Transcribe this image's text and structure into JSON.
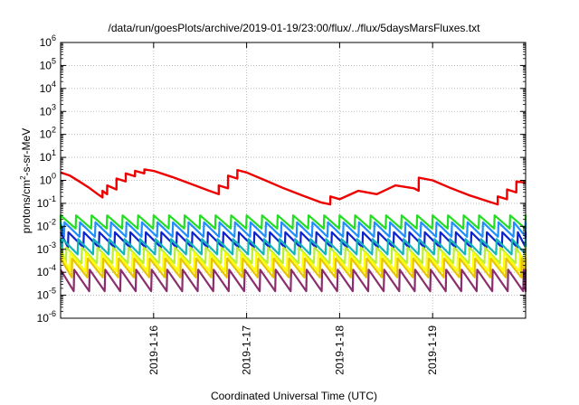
{
  "chart_data": {
    "type": "line",
    "title": "/data/run/goesPlots/archive/2019-01-19/23:00/flux/../flux/5daysMarsFluxes.txt",
    "xlabel": "Coordinated Universal Time (UTC)",
    "ylabel": "protons/cm²-s-sr-MeV",
    "ylabel_parts": {
      "pre": "protons/cm",
      "sup": "2",
      "post": "-s-sr-MeV"
    },
    "y_scale": "log",
    "ylim": [
      1e-06,
      1000000.0
    ],
    "x_range_days": [
      "2019-01-15 00:00",
      "2019-01-20 00:00"
    ],
    "xticks": [
      "2019-1-16",
      "2019-1-17",
      "2019-1-18",
      "2019-1-19"
    ],
    "ytick_exponents": [
      "6",
      "5",
      "4",
      "3",
      "2",
      "1",
      "0",
      "-1",
      "-2",
      "-3",
      "-4",
      "-5",
      "-6"
    ],
    "ytick_base": "10",
    "grid": true,
    "grid_style": "dotted",
    "colors": {
      "red": "#ee0000",
      "green": "#22dd22",
      "azure": "#1f8fff",
      "blue": "#0c22cc",
      "teal": "#12b6b6",
      "yellowgreen": "#b8ee33",
      "yellow": "#ffff00",
      "orange": "#e8c400",
      "purple": "#8a2f6e"
    },
    "series": [
      {
        "color": "red",
        "x": [
          "2019-01-15 00:00",
          "2019-01-15 02:24",
          "2019-01-15 04:48",
          "2019-01-15 07:12",
          "2019-01-15 09:36",
          "2019-01-15 10:48",
          "2019-01-15 10:49",
          "2019-01-15 12:00",
          "2019-01-15 12:01",
          "2019-01-15 14:24",
          "2019-01-15 14:25",
          "2019-01-15 16:48",
          "2019-01-15 16:49",
          "2019-01-15 19:12",
          "2019-01-15 19:13",
          "2019-01-15 21:36",
          "2019-01-15 21:37",
          "2019-01-16 00:00",
          "2019-01-16 04:48",
          "2019-01-16 09:36",
          "2019-01-16 14:24",
          "2019-01-16 16:48",
          "2019-01-16 16:49",
          "2019-01-16 19:12",
          "2019-01-16 19:13",
          "2019-01-16 21:36",
          "2019-01-16 21:37",
          "2019-01-17 00:00",
          "2019-01-17 04:48",
          "2019-01-17 09:36",
          "2019-01-17 14:24",
          "2019-01-17 19:12",
          "2019-01-17 21:36",
          "2019-01-17 21:37",
          "2019-01-18 00:00",
          "2019-01-18 04:48",
          "2019-01-18 09:36",
          "2019-01-18 14:24",
          "2019-01-18 19:12",
          "2019-01-18 20:24",
          "2019-01-18 20:25",
          "2019-01-19 00:00",
          "2019-01-19 04:48",
          "2019-01-19 09:36",
          "2019-01-19 14:24",
          "2019-01-19 16:48",
          "2019-01-19 16:49",
          "2019-01-19 19:12",
          "2019-01-19 19:13",
          "2019-01-19 21:36",
          "2019-01-19 21:37",
          "2019-01-20 00:00"
        ],
        "values": [
          2.2,
          1.6,
          0.9,
          0.5,
          0.25,
          0.18,
          0.35,
          0.25,
          0.6,
          0.4,
          1.2,
          0.9,
          2.0,
          1.5,
          2.6,
          2.0,
          3.0,
          2.6,
          1.4,
          0.7,
          0.35,
          0.25,
          0.6,
          0.45,
          1.6,
          1.2,
          2.8,
          2.2,
          1.0,
          0.45,
          0.22,
          0.11,
          0.09,
          0.2,
          0.15,
          0.35,
          0.25,
          0.6,
          0.45,
          0.35,
          1.3,
          1.0,
          0.45,
          0.22,
          0.12,
          0.09,
          0.2,
          0.15,
          0.4,
          0.3,
          0.9,
          0.8
        ]
      }
    ],
    "sawtooth_bands": [
      {
        "color": "green",
        "high": 0.03,
        "low": 0.008,
        "period_hours": 4.0,
        "offset_hours": 0.0
      },
      {
        "color": "azure",
        "high": 0.015,
        "low": 0.0035,
        "period_hours": 4.0,
        "offset_hours": 1.0
      },
      {
        "color": "blue",
        "high": 0.0055,
        "low": 0.0012,
        "period_hours": 4.0,
        "offset_hours": 2.0
      },
      {
        "color": "teal",
        "high": 0.0028,
        "low": 0.0006,
        "period_hours": 4.0,
        "offset_hours": 0.5
      },
      {
        "color": "yellowgreen",
        "high": 0.0012,
        "low": 0.00025,
        "period_hours": 4.0,
        "offset_hours": 1.5
      },
      {
        "color": "yellow",
        "high": 0.0007,
        "low": 0.00011,
        "period_hours": 4.0,
        "offset_hours": 2.5
      },
      {
        "color": "orange",
        "high": 0.0004,
        "low": 6e-05,
        "period_hours": 4.0,
        "offset_hours": 3.0
      },
      {
        "color": "purple",
        "high": 0.00013,
        "low": 1.5e-05,
        "period_hours": 4.0,
        "offset_hours": 3.5
      }
    ]
  }
}
